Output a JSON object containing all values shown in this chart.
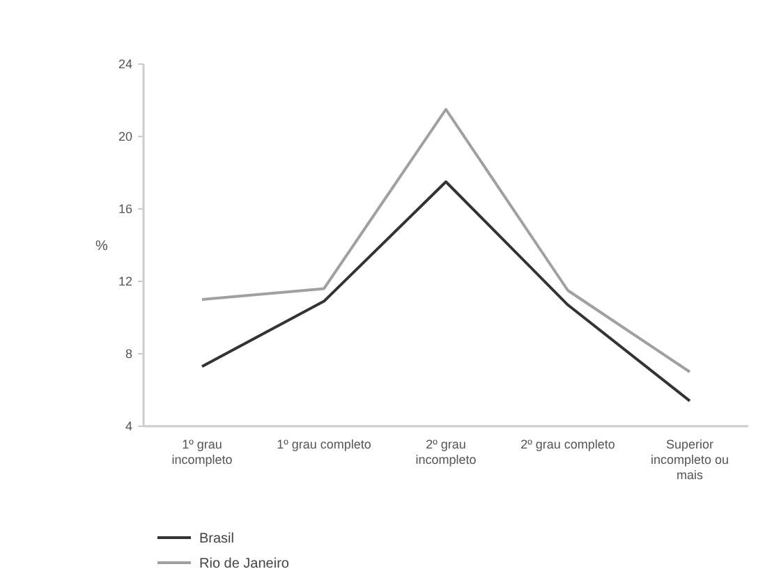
{
  "chart_data": {
    "type": "line",
    "ylabel": "%",
    "categories": [
      "1º grau incompleto",
      "1º grau completo",
      "2º grau incompleto",
      "2º grau completo",
      "Superior incompleto ou mais"
    ],
    "series": [
      {
        "name": "Brasil",
        "color": "#333333",
        "values": [
          7.3,
          10.9,
          17.5,
          10.7,
          5.4
        ]
      },
      {
        "name": "Rio de Janeiro",
        "color": "#a0a0a0",
        "values": [
          11.0,
          11.6,
          21.5,
          11.5,
          7.0
        ]
      }
    ],
    "ylim": [
      4,
      24
    ],
    "yticks": [
      4,
      8,
      12,
      16,
      20,
      24
    ],
    "grid": false,
    "legend": "bottom left",
    "marker": "none",
    "line_style": "solid"
  }
}
